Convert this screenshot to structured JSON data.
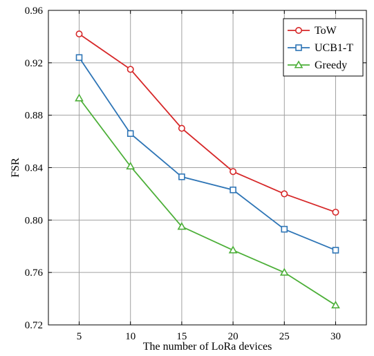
{
  "chart_data": {
    "type": "line",
    "xlabel": "The number of LoRa devices",
    "ylabel": "FSR",
    "x": [
      5,
      10,
      15,
      20,
      25,
      30
    ],
    "xticks": [
      "5",
      "10",
      "15",
      "20",
      "25",
      "30"
    ],
    "yticks": [
      "0.72",
      "0.76",
      "0.80",
      "0.84",
      "0.88",
      "0.92",
      "0.96"
    ],
    "xlim": [
      2,
      33
    ],
    "ylim": [
      0.72,
      0.96
    ],
    "grid": true,
    "legend_position": "top-right",
    "series": [
      {
        "name": "ToW",
        "color": "#d62728",
        "marker": "circle",
        "values": [
          0.942,
          0.915,
          0.87,
          0.837,
          0.82,
          0.806
        ]
      },
      {
        "name": "UCB1-T",
        "color": "#2e75b6",
        "marker": "square",
        "values": [
          0.924,
          0.866,
          0.833,
          0.823,
          0.793,
          0.777
        ]
      },
      {
        "name": "Greedy",
        "color": "#4caf38",
        "marker": "triangle",
        "values": [
          0.893,
          0.841,
          0.795,
          0.777,
          0.76,
          0.735
        ]
      }
    ]
  }
}
